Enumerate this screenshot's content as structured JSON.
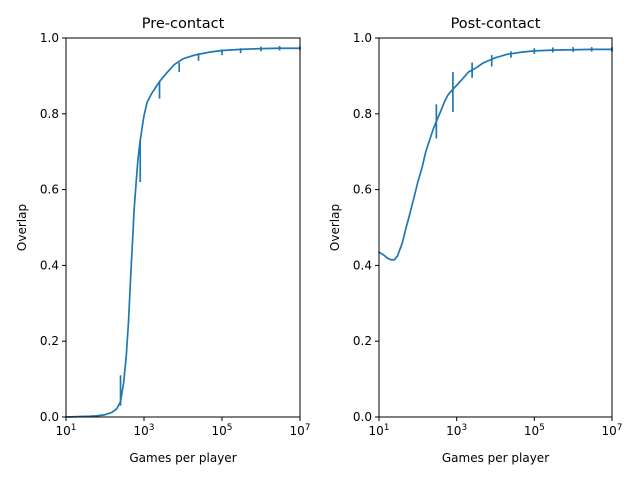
{
  "chart_data": [
    {
      "type": "line",
      "title": "Pre-contact",
      "xlabel": "Games per player",
      "ylabel": "Overlap",
      "xscale": "log",
      "xlim": [
        10,
        10000000
      ],
      "ylim": [
        0,
        1
      ],
      "x_ticks": [
        {
          "value": 10,
          "base": "10",
          "exp": "1"
        },
        {
          "value": 1000,
          "base": "10",
          "exp": "3"
        },
        {
          "value": 100000,
          "base": "10",
          "exp": "5"
        },
        {
          "value": 10000000,
          "base": "10",
          "exp": "7"
        }
      ],
      "y_ticks": [
        {
          "value": 0,
          "label": "0.0"
        },
        {
          "value": 0.2,
          "label": "0.2"
        },
        {
          "value": 0.4,
          "label": "0.4"
        },
        {
          "value": 0.6,
          "label": "0.6"
        },
        {
          "value": 0.8,
          "label": "0.8"
        },
        {
          "value": 1.0,
          "label": "1.0"
        }
      ],
      "grid": false,
      "color": "#1f77b4",
      "series": [
        {
          "x": [
            10,
            20,
            40,
            60,
            100,
            150,
            200,
            250,
            300,
            350,
            400,
            450,
            500,
            560,
            630,
            700,
            800,
            900,
            1000,
            1200,
            1500,
            2000,
            2500,
            3000,
            4000,
            6000,
            10000,
            20000,
            50000,
            100000,
            300000,
            1000000,
            3000000,
            10000000
          ],
          "y": [
            0.0,
            0.001,
            0.002,
            0.003,
            0.006,
            0.012,
            0.022,
            0.04,
            0.09,
            0.16,
            0.25,
            0.36,
            0.45,
            0.55,
            0.62,
            0.68,
            0.73,
            0.765,
            0.795,
            0.83,
            0.85,
            0.87,
            0.885,
            0.895,
            0.91,
            0.93,
            0.945,
            0.955,
            0.963,
            0.967,
            0.97,
            0.972,
            0.973,
            0.973
          ],
          "errorbars": [
            {
              "x": 250,
              "low": 0.03,
              "high": 0.11
            },
            {
              "x": 800,
              "low": 0.62,
              "high": 0.73
            },
            {
              "x": 2500,
              "low": 0.84,
              "high": 0.885
            },
            {
              "x": 8000,
              "low": 0.91,
              "high": 0.935
            },
            {
              "x": 25000,
              "low": 0.94,
              "high": 0.96
            },
            {
              "x": 100000,
              "low": 0.955,
              "high": 0.97
            },
            {
              "x": 300000,
              "low": 0.96,
              "high": 0.973
            },
            {
              "x": 1000000,
              "low": 0.965,
              "high": 0.977
            },
            {
              "x": 3000000,
              "low": 0.967,
              "high": 0.979
            },
            {
              "x": 10000000,
              "low": 0.968,
              "high": 0.978
            }
          ]
        }
      ]
    },
    {
      "type": "line",
      "title": "Post-contact",
      "xlabel": "Games per player",
      "ylabel": "Overlap",
      "xscale": "log",
      "xlim": [
        10,
        10000000
      ],
      "ylim": [
        0,
        1
      ],
      "x_ticks": [
        {
          "value": 10,
          "base": "10",
          "exp": "1"
        },
        {
          "value": 1000,
          "base": "10",
          "exp": "3"
        },
        {
          "value": 100000,
          "base": "10",
          "exp": "5"
        },
        {
          "value": 10000000,
          "base": "10",
          "exp": "7"
        }
      ],
      "y_ticks": [
        {
          "value": 0,
          "label": "0.0"
        },
        {
          "value": 0.2,
          "label": "0.2"
        },
        {
          "value": 0.4,
          "label": "0.4"
        },
        {
          "value": 0.6,
          "label": "0.6"
        },
        {
          "value": 0.8,
          "label": "0.8"
        },
        {
          "value": 1.0,
          "label": "1.0"
        }
      ],
      "grid": false,
      "color": "#1f77b4",
      "series": [
        {
          "x": [
            10,
            13,
            16,
            20,
            25,
            30,
            40,
            50,
            60,
            80,
            100,
            130,
            160,
            200,
            250,
            300,
            400,
            500,
            600,
            800,
            1000,
            1500,
            2000,
            3000,
            5000,
            10000,
            20000,
            50000,
            100000,
            300000,
            1000000,
            3000000,
            10000000
          ],
          "y": [
            0.435,
            0.428,
            0.42,
            0.415,
            0.415,
            0.425,
            0.46,
            0.5,
            0.53,
            0.58,
            0.62,
            0.66,
            0.7,
            0.73,
            0.76,
            0.78,
            0.81,
            0.835,
            0.85,
            0.865,
            0.875,
            0.895,
            0.91,
            0.92,
            0.935,
            0.948,
            0.957,
            0.963,
            0.966,
            0.968,
            0.969,
            0.97,
            0.97
          ],
          "errorbars": [
            {
              "x": 300,
              "low": 0.735,
              "high": 0.825
            },
            {
              "x": 800,
              "low": 0.805,
              "high": 0.91
            },
            {
              "x": 2500,
              "low": 0.895,
              "high": 0.935
            },
            {
              "x": 8000,
              "low": 0.925,
              "high": 0.955
            },
            {
              "x": 25000,
              "low": 0.948,
              "high": 0.965
            },
            {
              "x": 100000,
              "low": 0.958,
              "high": 0.973
            },
            {
              "x": 300000,
              "low": 0.962,
              "high": 0.975
            },
            {
              "x": 1000000,
              "low": 0.963,
              "high": 0.976
            },
            {
              "x": 3000000,
              "low": 0.964,
              "high": 0.976
            },
            {
              "x": 10000000,
              "low": 0.964,
              "high": 0.976
            }
          ]
        }
      ]
    }
  ]
}
